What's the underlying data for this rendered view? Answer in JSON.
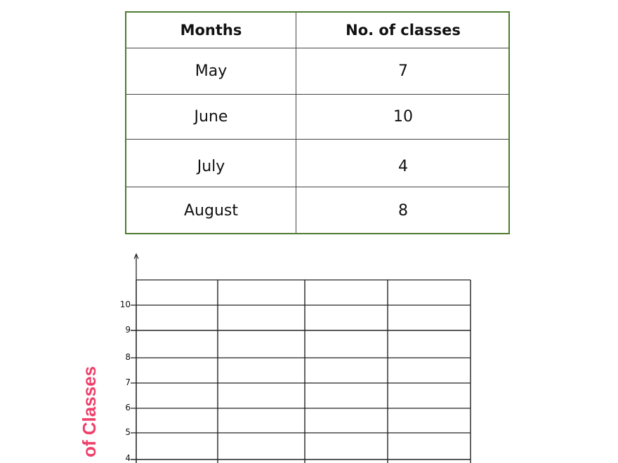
{
  "table": {
    "headers": [
      "Months",
      "No. of classes"
    ],
    "rows": [
      {
        "month": "May",
        "classes": "7"
      },
      {
        "month": "June",
        "classes": "10"
      },
      {
        "month": "July",
        "classes": "4"
      },
      {
        "month": "August",
        "classes": "8"
      }
    ],
    "border_color": "#4f7a2e"
  },
  "graph": {
    "y_axis_label": "of Classes",
    "y_axis_label_color": "#ef3f6a",
    "y_ticks": [
      "10",
      "9",
      "8",
      "7",
      "6",
      "5",
      "4"
    ],
    "columns": 4
  }
}
